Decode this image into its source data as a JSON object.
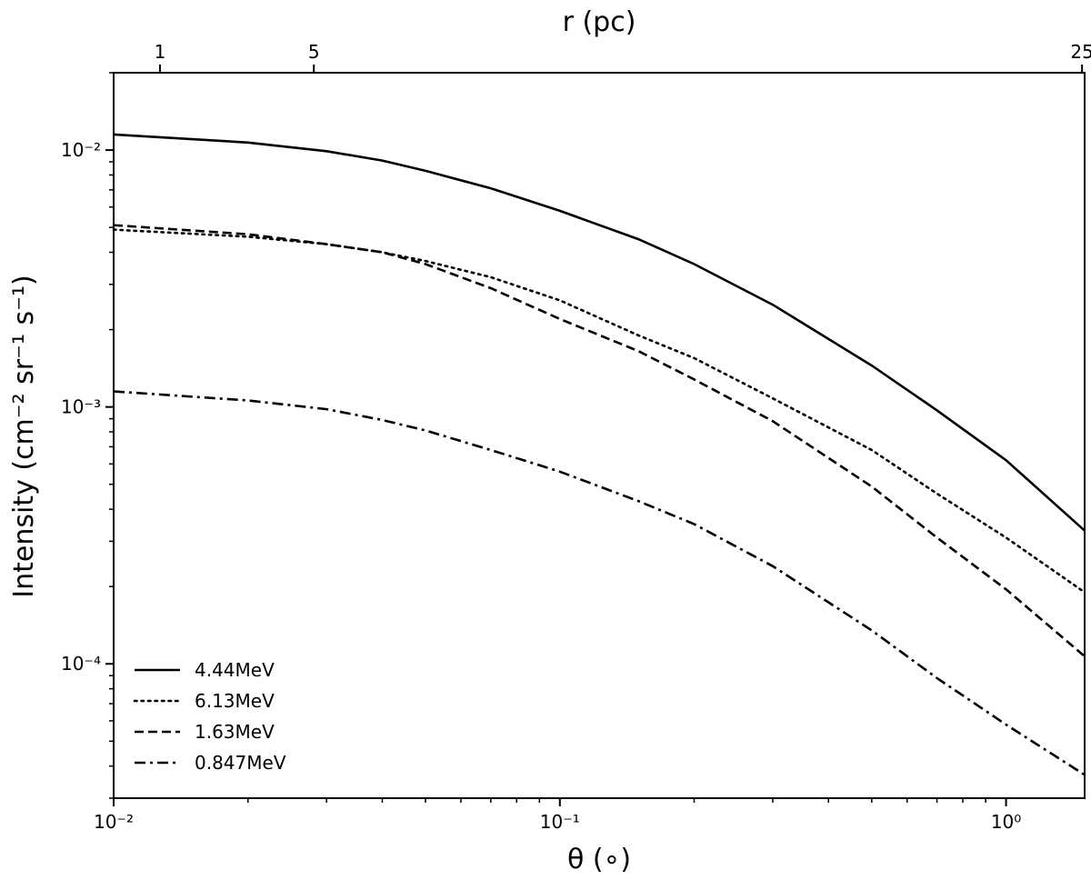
{
  "chart_data": {
    "type": "line",
    "xscale": "log",
    "yscale": "log",
    "xlim": [
      0.01,
      1.5
    ],
    "ylim": [
      3e-05,
      0.02
    ],
    "xlabel": "θ (∘)",
    "ylabel": "Intensity (cm⁻² sr⁻¹ s⁻¹)",
    "top_axis_label": "r (pc)",
    "x_ticks": [
      {
        "value": 0.01,
        "label": "10⁻²"
      },
      {
        "value": 0.1,
        "label": "10⁻¹"
      },
      {
        "value": 1.0,
        "label": "10⁰"
      }
    ],
    "y_ticks": [
      {
        "value": 0.01,
        "label": "10⁻²"
      },
      {
        "value": 0.001,
        "label": "10⁻³"
      },
      {
        "value": 0.0001,
        "label": "10⁻⁴"
      }
    ],
    "top_ticks": [
      {
        "theta": 0.0127,
        "label": "1"
      },
      {
        "theta": 0.0281,
        "label": "5"
      },
      {
        "theta": 1.48,
        "label": "25"
      }
    ],
    "grid": false,
    "legend_position": "lower-left",
    "series": [
      {
        "name": "4.44MeV",
        "style": "solid",
        "x": [
          0.01,
          0.02,
          0.03,
          0.04,
          0.05,
          0.07,
          0.1,
          0.15,
          0.2,
          0.3,
          0.5,
          0.7,
          1.0,
          1.5
        ],
        "y": [
          0.0115,
          0.0107,
          0.0099,
          0.0091,
          0.0083,
          0.0071,
          0.0058,
          0.0045,
          0.0036,
          0.0025,
          0.00145,
          0.00097,
          0.00062,
          0.00033
        ]
      },
      {
        "name": "6.13MeV",
        "style": "dotted",
        "x": [
          0.01,
          0.02,
          0.03,
          0.04,
          0.05,
          0.07,
          0.1,
          0.15,
          0.2,
          0.3,
          0.5,
          0.7,
          1.0,
          1.5
        ],
        "y": [
          0.0049,
          0.0046,
          0.0043,
          0.004,
          0.0037,
          0.0032,
          0.0026,
          0.0019,
          0.00155,
          0.00108,
          0.00068,
          0.00046,
          0.00031,
          0.00019
        ]
      },
      {
        "name": "1.63MeV",
        "style": "dashed",
        "x": [
          0.01,
          0.02,
          0.03,
          0.04,
          0.05,
          0.07,
          0.1,
          0.15,
          0.2,
          0.3,
          0.5,
          0.7,
          1.0,
          1.5
        ],
        "y": [
          0.0051,
          0.0047,
          0.0043,
          0.004,
          0.0036,
          0.0029,
          0.0022,
          0.00165,
          0.00128,
          0.00088,
          0.00049,
          0.00031,
          0.000195,
          0.000107
        ]
      },
      {
        "name": "0.847MeV",
        "style": "dashdot",
        "x": [
          0.01,
          0.02,
          0.03,
          0.04,
          0.05,
          0.07,
          0.1,
          0.15,
          0.2,
          0.3,
          0.5,
          0.7,
          1.0,
          1.5
        ],
        "y": [
          0.00115,
          0.00106,
          0.00098,
          0.00089,
          0.00081,
          0.00068,
          0.00056,
          0.00043,
          0.00035,
          0.00024,
          0.000135,
          8.8e-05,
          5.8e-05,
          3.7e-05
        ]
      }
    ]
  }
}
